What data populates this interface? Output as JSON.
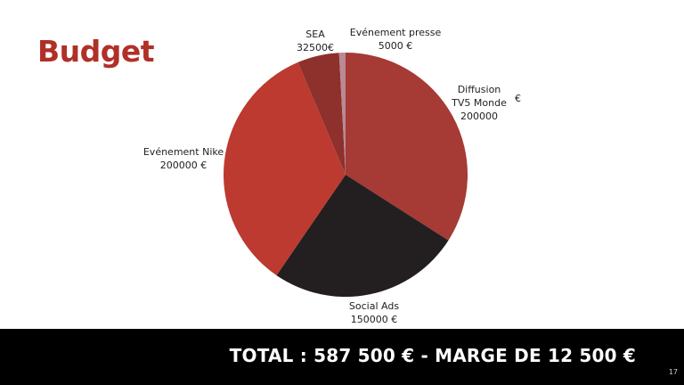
{
  "slide": {
    "title": "Budget",
    "footer_total": "TOTAL : 587 500 € - MARGE DE 12 500 €",
    "page_number": "17"
  },
  "chart_data": {
    "type": "pie",
    "title": "Budget",
    "slices": [
      {
        "name": "Diffusion TV5 Monde",
        "value": 200000,
        "color": "#a63a35"
      },
      {
        "name": "Social Ads",
        "value": 150000,
        "color": "#231f20"
      },
      {
        "name": "Evénement Nike",
        "value": 200000,
        "color": "#bc3a2f"
      },
      {
        "name": "SEA",
        "value": 32500,
        "color": "#8e302b"
      },
      {
        "name": "Evénement presse",
        "value": 5000,
        "color": "#b98a95"
      }
    ],
    "labels": {
      "diffusion": {
        "line1": "Diffusion",
        "line2": "TV5 Monde",
        "line3": "200000",
        "currency": "€"
      },
      "social": {
        "line1": "Social Ads",
        "line2": "150000 €"
      },
      "nike": {
        "line1": "Evénement Nike",
        "line2": "200000 €"
      },
      "sea": {
        "line1": "SEA",
        "line2": "32500€"
      },
      "presse": {
        "line1": "Evénement presse",
        "line2": "5000 €"
      }
    }
  }
}
